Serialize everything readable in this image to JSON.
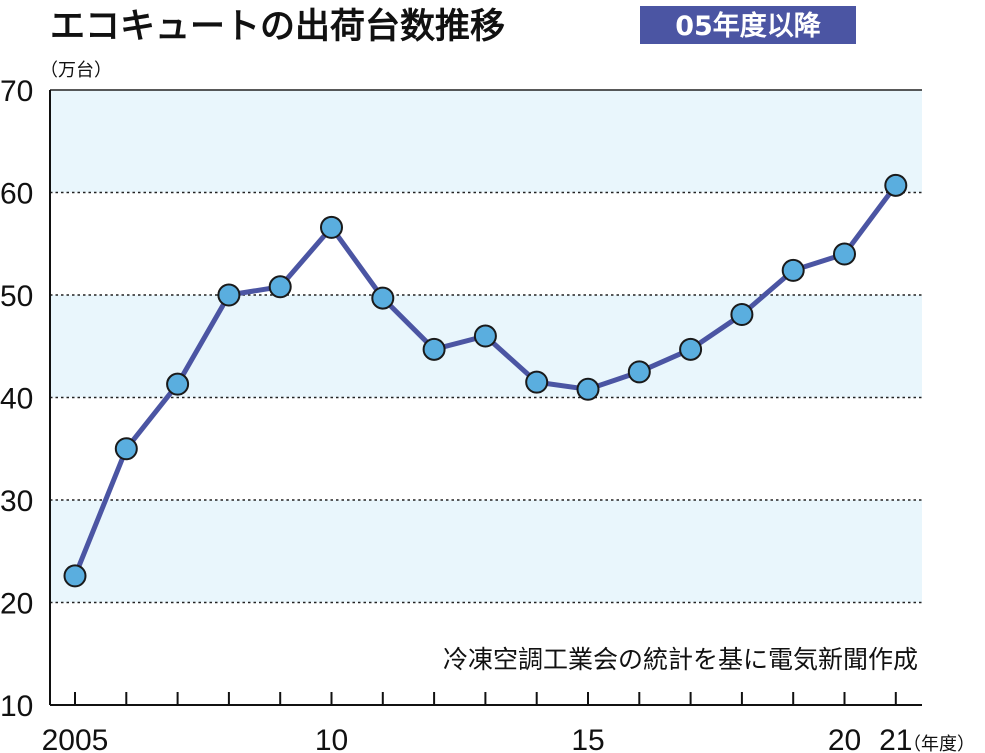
{
  "header": {
    "title": "エコキュートの出荷台数推移",
    "badge": "05年度以降"
  },
  "source_note": "冷凍空調工業会の統計を基に電気新聞作成",
  "colors": {
    "line": "#4b55a3",
    "marker_fill": "#5aaedf",
    "marker_stroke": "#1a1a1a",
    "band_fill": "#e9f6fc",
    "badge_bg": "#4b55a3"
  },
  "chart_data": {
    "type": "line",
    "title": "エコキュートの出荷台数推移",
    "subtitle": "05年度以降",
    "ylabel": "（万台）",
    "xlabel": "（年度）",
    "ylim": [
      10,
      70
    ],
    "yticks": [
      "10",
      "20",
      "30",
      "40",
      "50",
      "60",
      "70"
    ],
    "xlim": [
      2004.5,
      2021.5
    ],
    "xtick_labels": [
      {
        "x": 2005,
        "label": "2005"
      },
      {
        "x": 2010,
        "label": "10"
      },
      {
        "x": 2015,
        "label": "15"
      },
      {
        "x": 2020,
        "label": "20"
      },
      {
        "x": 2021,
        "label": "21"
      }
    ],
    "grid": true,
    "legend": "none",
    "x": [
      2005,
      2006,
      2007,
      2008,
      2009,
      2010,
      2011,
      2012,
      2013,
      2014,
      2015,
      2016,
      2017,
      2018,
      2019,
      2020,
      2021
    ],
    "series": [
      {
        "values": [
          22.6,
          35.0,
          41.3,
          50.0,
          50.8,
          56.6,
          49.7,
          44.7,
          46.0,
          41.5,
          40.8,
          42.5,
          44.7,
          48.1,
          52.4,
          54.0,
          60.7
        ]
      }
    ]
  }
}
